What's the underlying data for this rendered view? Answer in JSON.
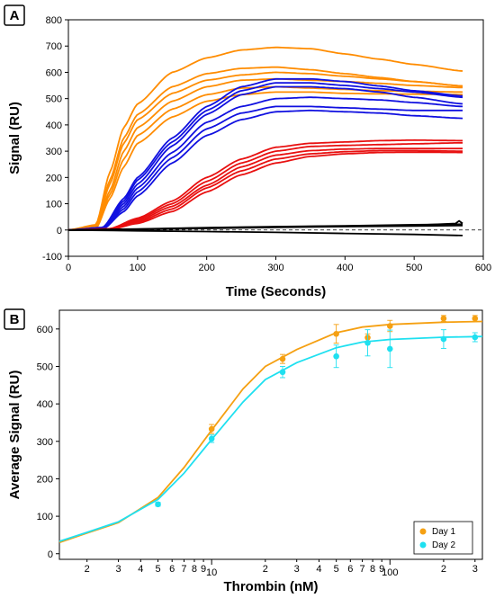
{
  "chart_data": [
    {
      "panel": "A",
      "type": "line",
      "xlabel": "Time (Seconds)",
      "ylabel": "Signal (RU)",
      "xlim": [
        0,
        600
      ],
      "ylim": [
        -100,
        800
      ],
      "xticks": [
        0,
        100,
        200,
        300,
        400,
        500,
        600
      ],
      "yticks": [
        -100,
        0,
        100,
        200,
        300,
        400,
        500,
        600,
        700,
        800
      ],
      "grid": false,
      "legend": "none",
      "colors": {
        "orange": "#ff8c00",
        "blue": "#1010e0",
        "red": "#e81010",
        "black": "#000000"
      },
      "series": [
        {
          "color": "orange",
          "start": 25,
          "k": 0.0185,
          "plateau": 690,
          "x": [
            0,
            40,
            60,
            80,
            100,
            150,
            200,
            250,
            300,
            350,
            400,
            450,
            500,
            570
          ],
          "values": [
            0,
            20,
            220,
            390,
            480,
            600,
            655,
            685,
            695,
            690,
            670,
            650,
            630,
            605
          ]
        },
        {
          "color": "orange",
          "start": 28,
          "k": 0.018,
          "plateau": 625,
          "x": [
            0,
            40,
            60,
            80,
            100,
            150,
            200,
            250,
            300,
            350,
            400,
            450,
            500,
            570
          ],
          "values": [
            0,
            15,
            190,
            350,
            440,
            545,
            595,
            615,
            620,
            610,
            595,
            580,
            565,
            548
          ]
        },
        {
          "color": "orange",
          "start": 28,
          "k": 0.0175,
          "plateau": 605,
          "x": [
            0,
            40,
            60,
            80,
            100,
            150,
            200,
            250,
            300,
            350,
            400,
            450,
            500,
            570
          ],
          "values": [
            0,
            12,
            175,
            330,
            420,
            520,
            570,
            590,
            600,
            595,
            585,
            575,
            565,
            548
          ]
        },
        {
          "color": "orange",
          "start": 30,
          "k": 0.016,
          "plateau": 580,
          "x": [
            0,
            40,
            60,
            80,
            100,
            150,
            200,
            250,
            300,
            350,
            400,
            450,
            500,
            570
          ],
          "values": [
            0,
            10,
            150,
            300,
            390,
            490,
            545,
            570,
            575,
            570,
            565,
            558,
            550,
            542
          ]
        },
        {
          "color": "orange",
          "start": 30,
          "k": 0.015,
          "plateau": 560,
          "x": [
            0,
            40,
            60,
            80,
            100,
            150,
            200,
            250,
            300,
            350,
            400,
            450,
            500,
            570
          ],
          "values": [
            0,
            8,
            135,
            270,
            360,
            460,
            515,
            540,
            545,
            540,
            535,
            530,
            528,
            525
          ]
        },
        {
          "color": "orange",
          "start": 32,
          "k": 0.0135,
          "plateau": 540,
          "x": [
            0,
            40,
            60,
            80,
            100,
            150,
            200,
            250,
            300,
            350,
            400,
            450,
            500,
            570
          ],
          "values": [
            0,
            5,
            120,
            240,
            330,
            430,
            490,
            515,
            525,
            525,
            520,
            518,
            517,
            515
          ]
        },
        {
          "color": "blue",
          "start": 45,
          "k": 0.0115,
          "plateau": 585,
          "x": [
            0,
            50,
            80,
            100,
            150,
            200,
            250,
            300,
            350,
            400,
            450,
            500,
            570
          ],
          "values": [
            0,
            10,
            120,
            200,
            350,
            470,
            545,
            575,
            575,
            565,
            548,
            530,
            510
          ]
        },
        {
          "color": "blue",
          "start": 46,
          "k": 0.011,
          "plateau": 570,
          "x": [
            0,
            50,
            80,
            100,
            150,
            200,
            250,
            300,
            350,
            400,
            450,
            500,
            570
          ],
          "values": [
            0,
            8,
            110,
            190,
            335,
            455,
            530,
            560,
            560,
            550,
            538,
            525,
            505
          ]
        },
        {
          "color": "blue",
          "start": 47,
          "k": 0.0105,
          "plateau": 560,
          "x": [
            0,
            50,
            80,
            100,
            150,
            200,
            250,
            300,
            350,
            400,
            450,
            500,
            570
          ],
          "values": [
            0,
            6,
            100,
            175,
            320,
            440,
            515,
            545,
            545,
            538,
            525,
            505,
            480
          ]
        },
        {
          "color": "blue",
          "start": 48,
          "k": 0.01,
          "plateau": 520,
          "x": [
            0,
            50,
            80,
            100,
            150,
            200,
            250,
            300,
            350,
            400,
            450,
            500,
            570
          ],
          "values": [
            0,
            5,
            90,
            160,
            295,
            410,
            470,
            500,
            505,
            500,
            495,
            485,
            470
          ]
        },
        {
          "color": "blue",
          "start": 50,
          "k": 0.0095,
          "plateau": 505,
          "x": [
            0,
            50,
            80,
            100,
            150,
            200,
            250,
            300,
            350,
            400,
            450,
            500,
            570
          ],
          "values": [
            0,
            4,
            80,
            145,
            275,
            385,
            445,
            470,
            470,
            465,
            460,
            455,
            455
          ]
        },
        {
          "color": "blue",
          "start": 52,
          "k": 0.009,
          "plateau": 470,
          "x": [
            0,
            50,
            80,
            100,
            150,
            200,
            250,
            300,
            350,
            400,
            450,
            500,
            570
          ],
          "values": [
            0,
            3,
            70,
            130,
            255,
            360,
            420,
            450,
            455,
            450,
            445,
            435,
            425
          ]
        },
        {
          "color": "red",
          "start": 60,
          "k": 0.0075,
          "plateau": 355,
          "x": [
            0,
            60,
            100,
            150,
            200,
            250,
            300,
            350,
            400,
            450,
            500,
            570
          ],
          "values": [
            0,
            5,
            45,
            110,
            200,
            270,
            315,
            330,
            335,
            340,
            342,
            340
          ]
        },
        {
          "color": "red",
          "start": 62,
          "k": 0.0072,
          "plateau": 345,
          "x": [
            0,
            60,
            100,
            150,
            200,
            250,
            300,
            350,
            400,
            450,
            500,
            570
          ],
          "values": [
            0,
            4,
            40,
            100,
            185,
            255,
            300,
            318,
            322,
            325,
            328,
            332
          ]
        },
        {
          "color": "red",
          "start": 64,
          "k": 0.0068,
          "plateau": 330,
          "x": [
            0,
            60,
            100,
            150,
            200,
            250,
            300,
            350,
            400,
            450,
            500,
            570
          ],
          "values": [
            0,
            3,
            35,
            90,
            170,
            240,
            285,
            302,
            308,
            310,
            310,
            310
          ]
        },
        {
          "color": "red",
          "start": 66,
          "k": 0.0065,
          "plateau": 320,
          "x": [
            0,
            60,
            100,
            150,
            200,
            250,
            300,
            350,
            400,
            450,
            500,
            570
          ],
          "values": [
            0,
            2,
            30,
            80,
            160,
            225,
            270,
            290,
            298,
            302,
            302,
            300
          ]
        },
        {
          "color": "red",
          "start": 68,
          "k": 0.006,
          "plateau": 315,
          "x": [
            0,
            60,
            100,
            150,
            200,
            250,
            300,
            350,
            400,
            450,
            500,
            570
          ],
          "values": [
            0,
            2,
            25,
            70,
            145,
            210,
            255,
            280,
            290,
            295,
            296,
            295
          ]
        },
        {
          "color": "black",
          "x": [
            0,
            100,
            200,
            300,
            400,
            500,
            560,
            565,
            570
          ],
          "values": [
            0,
            3,
            8,
            12,
            15,
            18,
            25,
            35,
            25
          ]
        },
        {
          "color": "black",
          "x": [
            0,
            100,
            200,
            300,
            400,
            500,
            570
          ],
          "values": [
            0,
            4,
            9,
            13,
            16,
            20,
            22
          ]
        },
        {
          "color": "black",
          "x": [
            0,
            100,
            200,
            300,
            400,
            500,
            570
          ],
          "values": [
            0,
            2,
            6,
            10,
            13,
            15,
            17
          ]
        },
        {
          "color": "black",
          "x": [
            0,
            100,
            200,
            300,
            400,
            500,
            570
          ],
          "values": [
            0,
            -3,
            -6,
            -9,
            -13,
            -17,
            -21
          ]
        }
      ]
    },
    {
      "panel": "B",
      "type": "scatter",
      "xlabel": "Thrombin (nM)",
      "ylabel": "Average Signal (RU)",
      "xscale": "log",
      "xlim": [
        1.4,
        330
      ],
      "ylim": [
        -15,
        650
      ],
      "yticks": [
        0,
        100,
        200,
        300,
        400,
        500,
        600
      ],
      "xticks_major": [
        {
          "v": 10,
          "label": "10"
        },
        {
          "v": 100,
          "label": "100"
        }
      ],
      "xticks_minor": [
        {
          "v": 2,
          "label": "2"
        },
        {
          "v": 3,
          "label": "3"
        },
        {
          "v": 4,
          "label": "4"
        },
        {
          "v": 5,
          "label": "5"
        },
        {
          "v": 6,
          "label": "6"
        },
        {
          "v": 7,
          "label": "7"
        },
        {
          "v": 8,
          "label": "8"
        },
        {
          "v": 9,
          "label": "9"
        },
        {
          "v": 20,
          "label": "2"
        },
        {
          "v": 30,
          "label": "3"
        },
        {
          "v": 40,
          "label": "4"
        },
        {
          "v": 50,
          "label": "5"
        },
        {
          "v": 60,
          "label": "6"
        },
        {
          "v": 70,
          "label": "7"
        },
        {
          "v": 80,
          "label": "8"
        },
        {
          "v": 90,
          "label": "9"
        },
        {
          "v": 200,
          "label": "2"
        },
        {
          "v": 300,
          "label": "3"
        }
      ],
      "legend": "bottom-right",
      "series": [
        {
          "name": "Day 1",
          "color": "#f5a012",
          "points": [
            {
              "x": 10,
              "y": 333,
              "err": 12
            },
            {
              "x": 25,
              "y": 520,
              "err": 12
            },
            {
              "x": 50,
              "y": 587,
              "err": 25
            },
            {
              "x": 75,
              "y": 577,
              "err": 10
            },
            {
              "x": 100,
              "y": 608,
              "err": 15
            },
            {
              "x": 200,
              "y": 628,
              "err": 8
            },
            {
              "x": 300,
              "y": 628,
              "err": 8
            }
          ],
          "fit": {
            "x": [
              1.4,
              2,
              3,
              5,
              7,
              10,
              15,
              20,
              30,
              50,
              70,
              100,
              200,
              330
            ],
            "y": [
              30,
              55,
              83,
              150,
              230,
              330,
              440,
              500,
              545,
              590,
              605,
              612,
              618,
              620
            ]
          }
        },
        {
          "name": "Day 2",
          "color": "#1ee0f0",
          "points": [
            {
              "x": 5,
              "y": 132,
              "err": 5
            },
            {
              "x": 10,
              "y": 307,
              "err": 10
            },
            {
              "x": 25,
              "y": 485,
              "err": 15
            },
            {
              "x": 50,
              "y": 527,
              "err": 30
            },
            {
              "x": 75,
              "y": 563,
              "err": 35
            },
            {
              "x": 100,
              "y": 547,
              "err": 50
            },
            {
              "x": 200,
              "y": 573,
              "err": 25
            },
            {
              "x": 300,
              "y": 578,
              "err": 12
            }
          ],
          "fit": {
            "x": [
              1.4,
              2,
              3,
              5,
              7,
              10,
              15,
              20,
              30,
              50,
              70,
              100,
              200,
              330
            ],
            "y": [
              33,
              57,
              85,
              145,
              215,
              305,
              405,
              465,
              510,
              550,
              565,
              572,
              578,
              580
            ]
          }
        }
      ]
    }
  ],
  "panels": {
    "a_letter": "A",
    "b_letter": "B"
  }
}
